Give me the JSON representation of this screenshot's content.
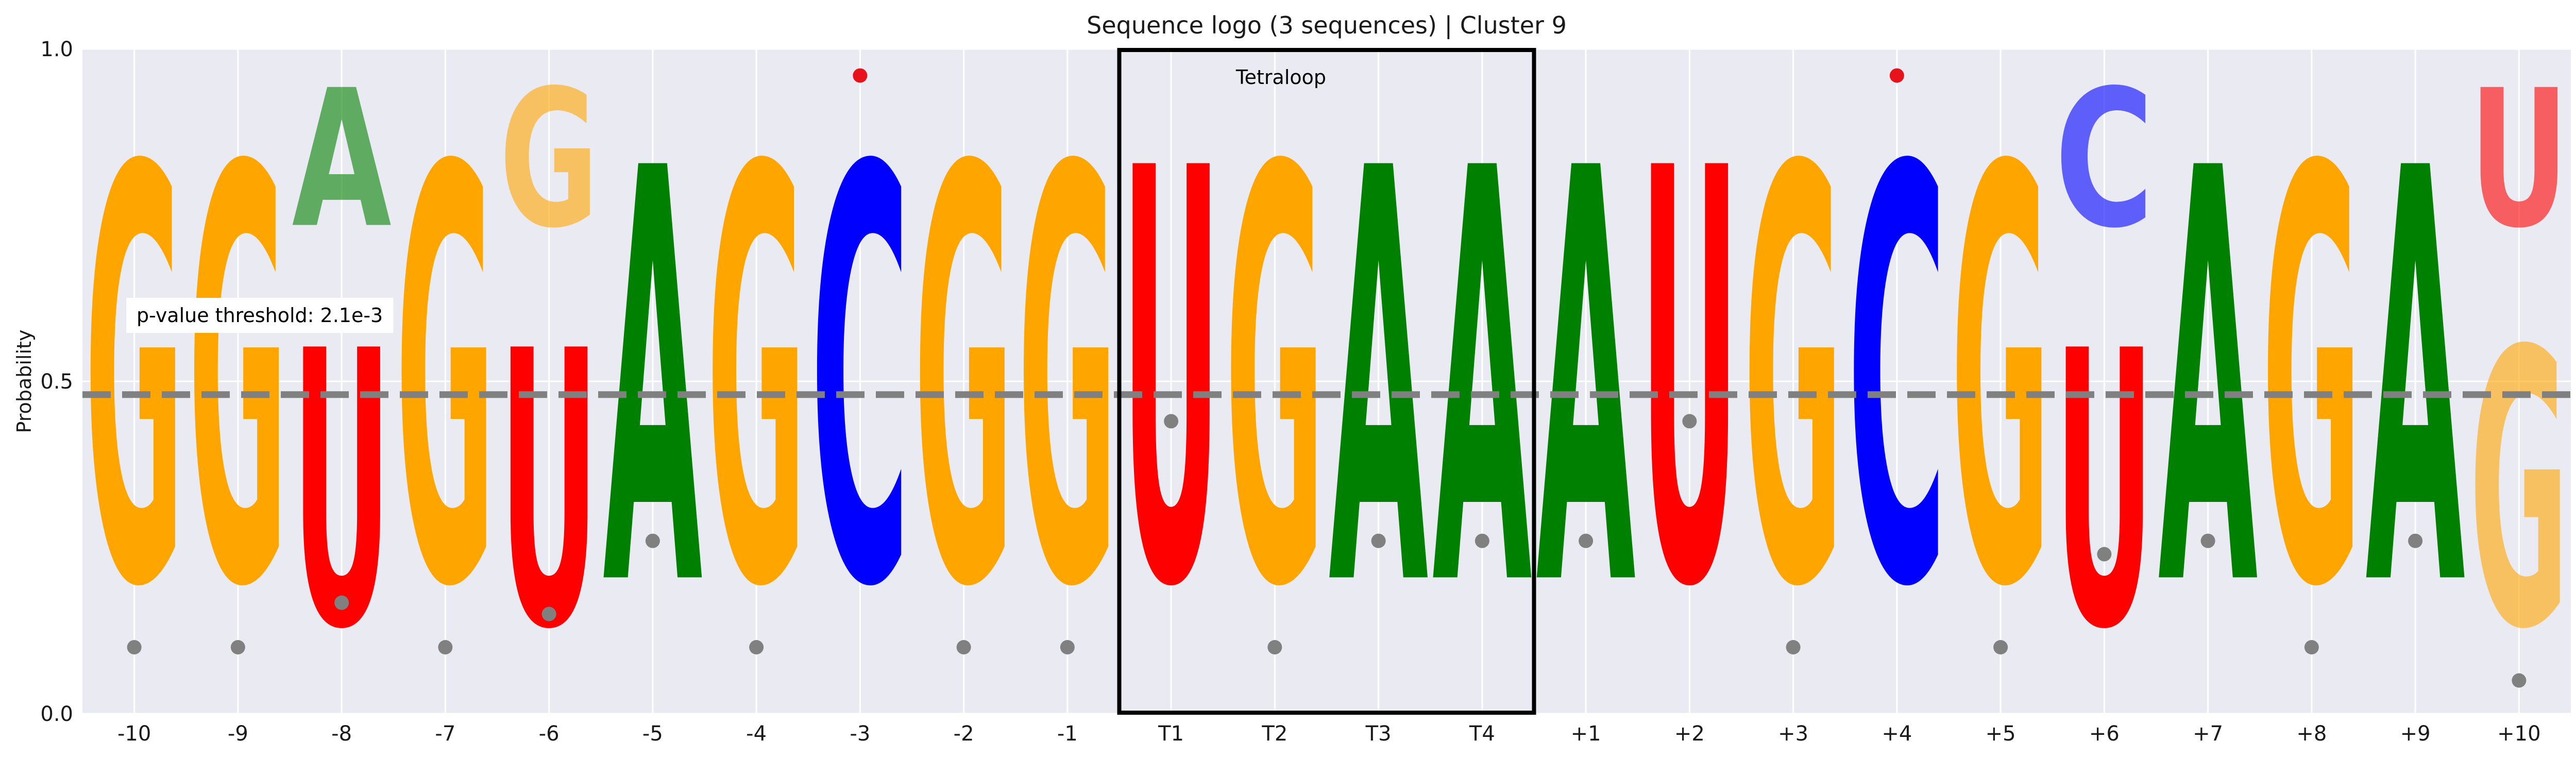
{
  "chart_data": {
    "type": "sequence-logo",
    "title": "Sequence logo (3 sequences) | Cluster 9",
    "xlabel": "",
    "ylabel": "Probability",
    "ylim": [
      0,
      1
    ],
    "yticks": [
      "0.0",
      "0.5",
      "1.0"
    ],
    "grid": true,
    "colors": {
      "G": "#FFA500",
      "A": "#008000",
      "U": "#FF0000",
      "C": "#0000FF"
    },
    "faded_alpha": 0.35,
    "threshold": {
      "value": 0.48,
      "label": "p-value threshold: 2.1e-3",
      "color": "#808080"
    },
    "region": {
      "label": "Tetraloop",
      "from": "T1",
      "to": "T4"
    },
    "positions": [
      {
        "label": "-10",
        "stack": [
          {
            "base": "G",
            "value": 1.0
          }
        ],
        "dot": 0.1,
        "dot_color": "gray"
      },
      {
        "label": "-9",
        "stack": [
          {
            "base": "G",
            "value": 1.0
          }
        ],
        "dot": 0.1,
        "dot_color": "gray"
      },
      {
        "label": "-8",
        "stack": [
          {
            "base": "U",
            "value": 0.667
          },
          {
            "base": "A",
            "value": 0.333,
            "faded": true
          }
        ],
        "dot": 0.167,
        "dot_color": "gray"
      },
      {
        "label": "-7",
        "stack": [
          {
            "base": "G",
            "value": 1.0
          }
        ],
        "dot": 0.1,
        "dot_color": "gray"
      },
      {
        "label": "-6",
        "stack": [
          {
            "base": "U",
            "value": 0.667
          },
          {
            "base": "G",
            "value": 0.333,
            "faded": true
          }
        ],
        "dot": 0.15,
        "dot_color": "gray"
      },
      {
        "label": "-5",
        "stack": [
          {
            "base": "A",
            "value": 1.0
          }
        ],
        "dot": 0.26,
        "dot_color": "gray"
      },
      {
        "label": "-4",
        "stack": [
          {
            "base": "G",
            "value": 1.0
          }
        ],
        "dot": 0.1,
        "dot_color": "gray"
      },
      {
        "label": "-3",
        "stack": [
          {
            "base": "C",
            "value": 1.0
          }
        ],
        "dot": 0.96,
        "dot_color": "red"
      },
      {
        "label": "-2",
        "stack": [
          {
            "base": "G",
            "value": 1.0
          }
        ],
        "dot": 0.1,
        "dot_color": "gray"
      },
      {
        "label": "-1",
        "stack": [
          {
            "base": "G",
            "value": 1.0
          }
        ],
        "dot": 0.1,
        "dot_color": "gray"
      },
      {
        "label": "T1",
        "stack": [
          {
            "base": "U",
            "value": 1.0
          }
        ],
        "dot": 0.44,
        "dot_color": "gray"
      },
      {
        "label": "T2",
        "stack": [
          {
            "base": "G",
            "value": 1.0
          }
        ],
        "dot": 0.1,
        "dot_color": "gray"
      },
      {
        "label": "T3",
        "stack": [
          {
            "base": "A",
            "value": 1.0
          }
        ],
        "dot": 0.26,
        "dot_color": "gray"
      },
      {
        "label": "T4",
        "stack": [
          {
            "base": "A",
            "value": 1.0
          }
        ],
        "dot": 0.26,
        "dot_color": "gray"
      },
      {
        "label": "+1",
        "stack": [
          {
            "base": "A",
            "value": 1.0
          }
        ],
        "dot": 0.26,
        "dot_color": "gray"
      },
      {
        "label": "+2",
        "stack": [
          {
            "base": "U",
            "value": 1.0
          }
        ],
        "dot": 0.44,
        "dot_color": "gray"
      },
      {
        "label": "+3",
        "stack": [
          {
            "base": "G",
            "value": 1.0
          }
        ],
        "dot": 0.1,
        "dot_color": "gray"
      },
      {
        "label": "+4",
        "stack": [
          {
            "base": "C",
            "value": 1.0
          }
        ],
        "dot": 0.96,
        "dot_color": "red"
      },
      {
        "label": "+5",
        "stack": [
          {
            "base": "G",
            "value": 1.0
          }
        ],
        "dot": 0.1,
        "dot_color": "gray"
      },
      {
        "label": "+6",
        "stack": [
          {
            "base": "U",
            "value": 0.667
          },
          {
            "base": "C",
            "value": 0.333,
            "faded": true
          }
        ],
        "dot": 0.24,
        "dot_color": "gray"
      },
      {
        "label": "+7",
        "stack": [
          {
            "base": "A",
            "value": 1.0
          }
        ],
        "dot": 0.26,
        "dot_color": "gray"
      },
      {
        "label": "+8",
        "stack": [
          {
            "base": "G",
            "value": 1.0
          }
        ],
        "dot": 0.1,
        "dot_color": "gray"
      },
      {
        "label": "+9",
        "stack": [
          {
            "base": "A",
            "value": 1.0
          }
        ],
        "dot": 0.26,
        "dot_color": "gray"
      },
      {
        "label": "+10",
        "stack": [
          {
            "base": "G",
            "value": 0.667,
            "faded": true
          },
          {
            "base": "U",
            "value": 0.333,
            "faded": true
          }
        ],
        "dot": 0.05,
        "dot_color": "gray"
      }
    ]
  }
}
